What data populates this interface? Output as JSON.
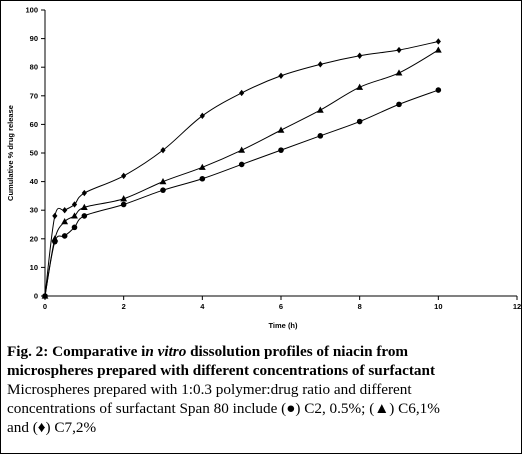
{
  "chart_data": {
    "type": "line",
    "ylabel": "Cumulative % drug release",
    "xlabel": "Time (h)",
    "xlim": [
      0,
      12
    ],
    "ylim": [
      0,
      100
    ],
    "x_ticks": [
      0,
      2,
      4,
      6,
      8,
      10,
      12
    ],
    "y_ticks": [
      0,
      10,
      20,
      30,
      40,
      50,
      60,
      70,
      80,
      90,
      100
    ],
    "grid": false,
    "legend": "none",
    "series": [
      {
        "marker": "circle",
        "color": "#000000",
        "x": [
          0,
          0.25,
          0.5,
          0.75,
          1,
          2,
          3,
          4,
          5,
          6,
          7,
          8,
          9,
          10
        ],
        "y": [
          0,
          19,
          21,
          24,
          28,
          32,
          37,
          41,
          46,
          51,
          56,
          61,
          67,
          72
        ]
      },
      {
        "marker": "triangle",
        "color": "#000000",
        "x": [
          0,
          0.25,
          0.5,
          0.75,
          1,
          2,
          3,
          4,
          5,
          6,
          7,
          8,
          9,
          10
        ],
        "y": [
          0,
          20,
          26,
          28,
          31,
          34,
          40,
          45,
          51,
          58,
          65,
          73,
          78,
          86
        ]
      },
      {
        "marker": "diamond",
        "color": "#000000",
        "x": [
          0,
          0.25,
          0.5,
          0.75,
          1,
          2,
          3,
          4,
          5,
          6,
          7,
          8,
          9,
          10
        ],
        "y": [
          0,
          28,
          30,
          32,
          36,
          42,
          51,
          63,
          71,
          77,
          81,
          84,
          86,
          89
        ]
      }
    ]
  },
  "caption": {
    "line1_a": "Fig. 2: Comparative i",
    "line1_b": "n vitro",
    "line1_c": " dissolution profiles of niacin from",
    "line2": "microspheres prepared with different concentrations of surfactant",
    "line3_a": "Microspheres prepared with ",
    "line3_b": "1:0.3 polymer:drug ratio and different",
    "line4_a": "concentrations of surfactant ",
    "line4_b": "Span 80 include  (●) C2, 0.5%; (▲) C6,1%",
    "line5": "and (♦) C7,2%"
  }
}
